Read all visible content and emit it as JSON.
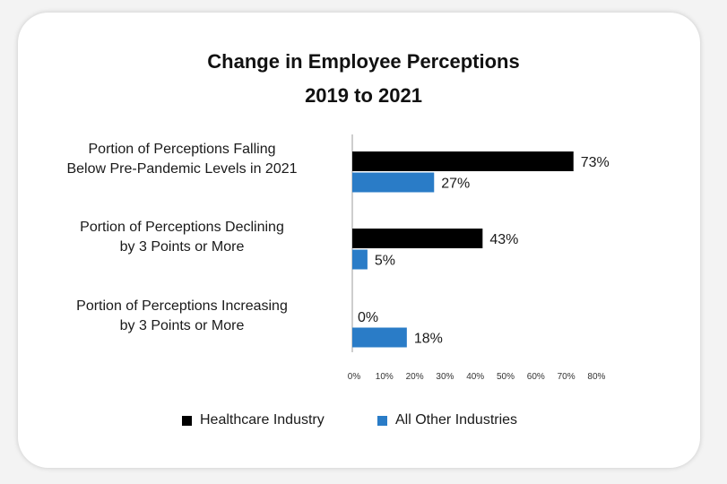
{
  "chart_data": {
    "type": "bar",
    "orientation": "horizontal",
    "title_line1": "Change in Employee Perceptions",
    "title_line2": "2019 to 2021",
    "categories": [
      [
        "Portion of Perceptions Falling",
        "Below Pre-Pandemic Levels in 2021"
      ],
      [
        "Portion of Perceptions Declining",
        "by 3 Points or More"
      ],
      [
        "Portion of Perceptions Increasing",
        "by 3 Points or More"
      ]
    ],
    "series": [
      {
        "name": "Healthcare Industry",
        "color": "#000000",
        "values": [
          73,
          43,
          0
        ],
        "labels": [
          "73%",
          "43%",
          "0%"
        ]
      },
      {
        "name": "All Other Industries",
        "color": "#2a7cc7",
        "values": [
          27,
          5,
          18
        ],
        "labels": [
          "27%",
          "5%",
          "18%"
        ]
      }
    ],
    "xlim": [
      0,
      80
    ],
    "xticks": [
      "0%",
      "10%",
      "20%",
      "30%",
      "40%",
      "50%",
      "60%",
      "70%",
      "80%"
    ],
    "grid": false,
    "legend_position": "bottom"
  }
}
